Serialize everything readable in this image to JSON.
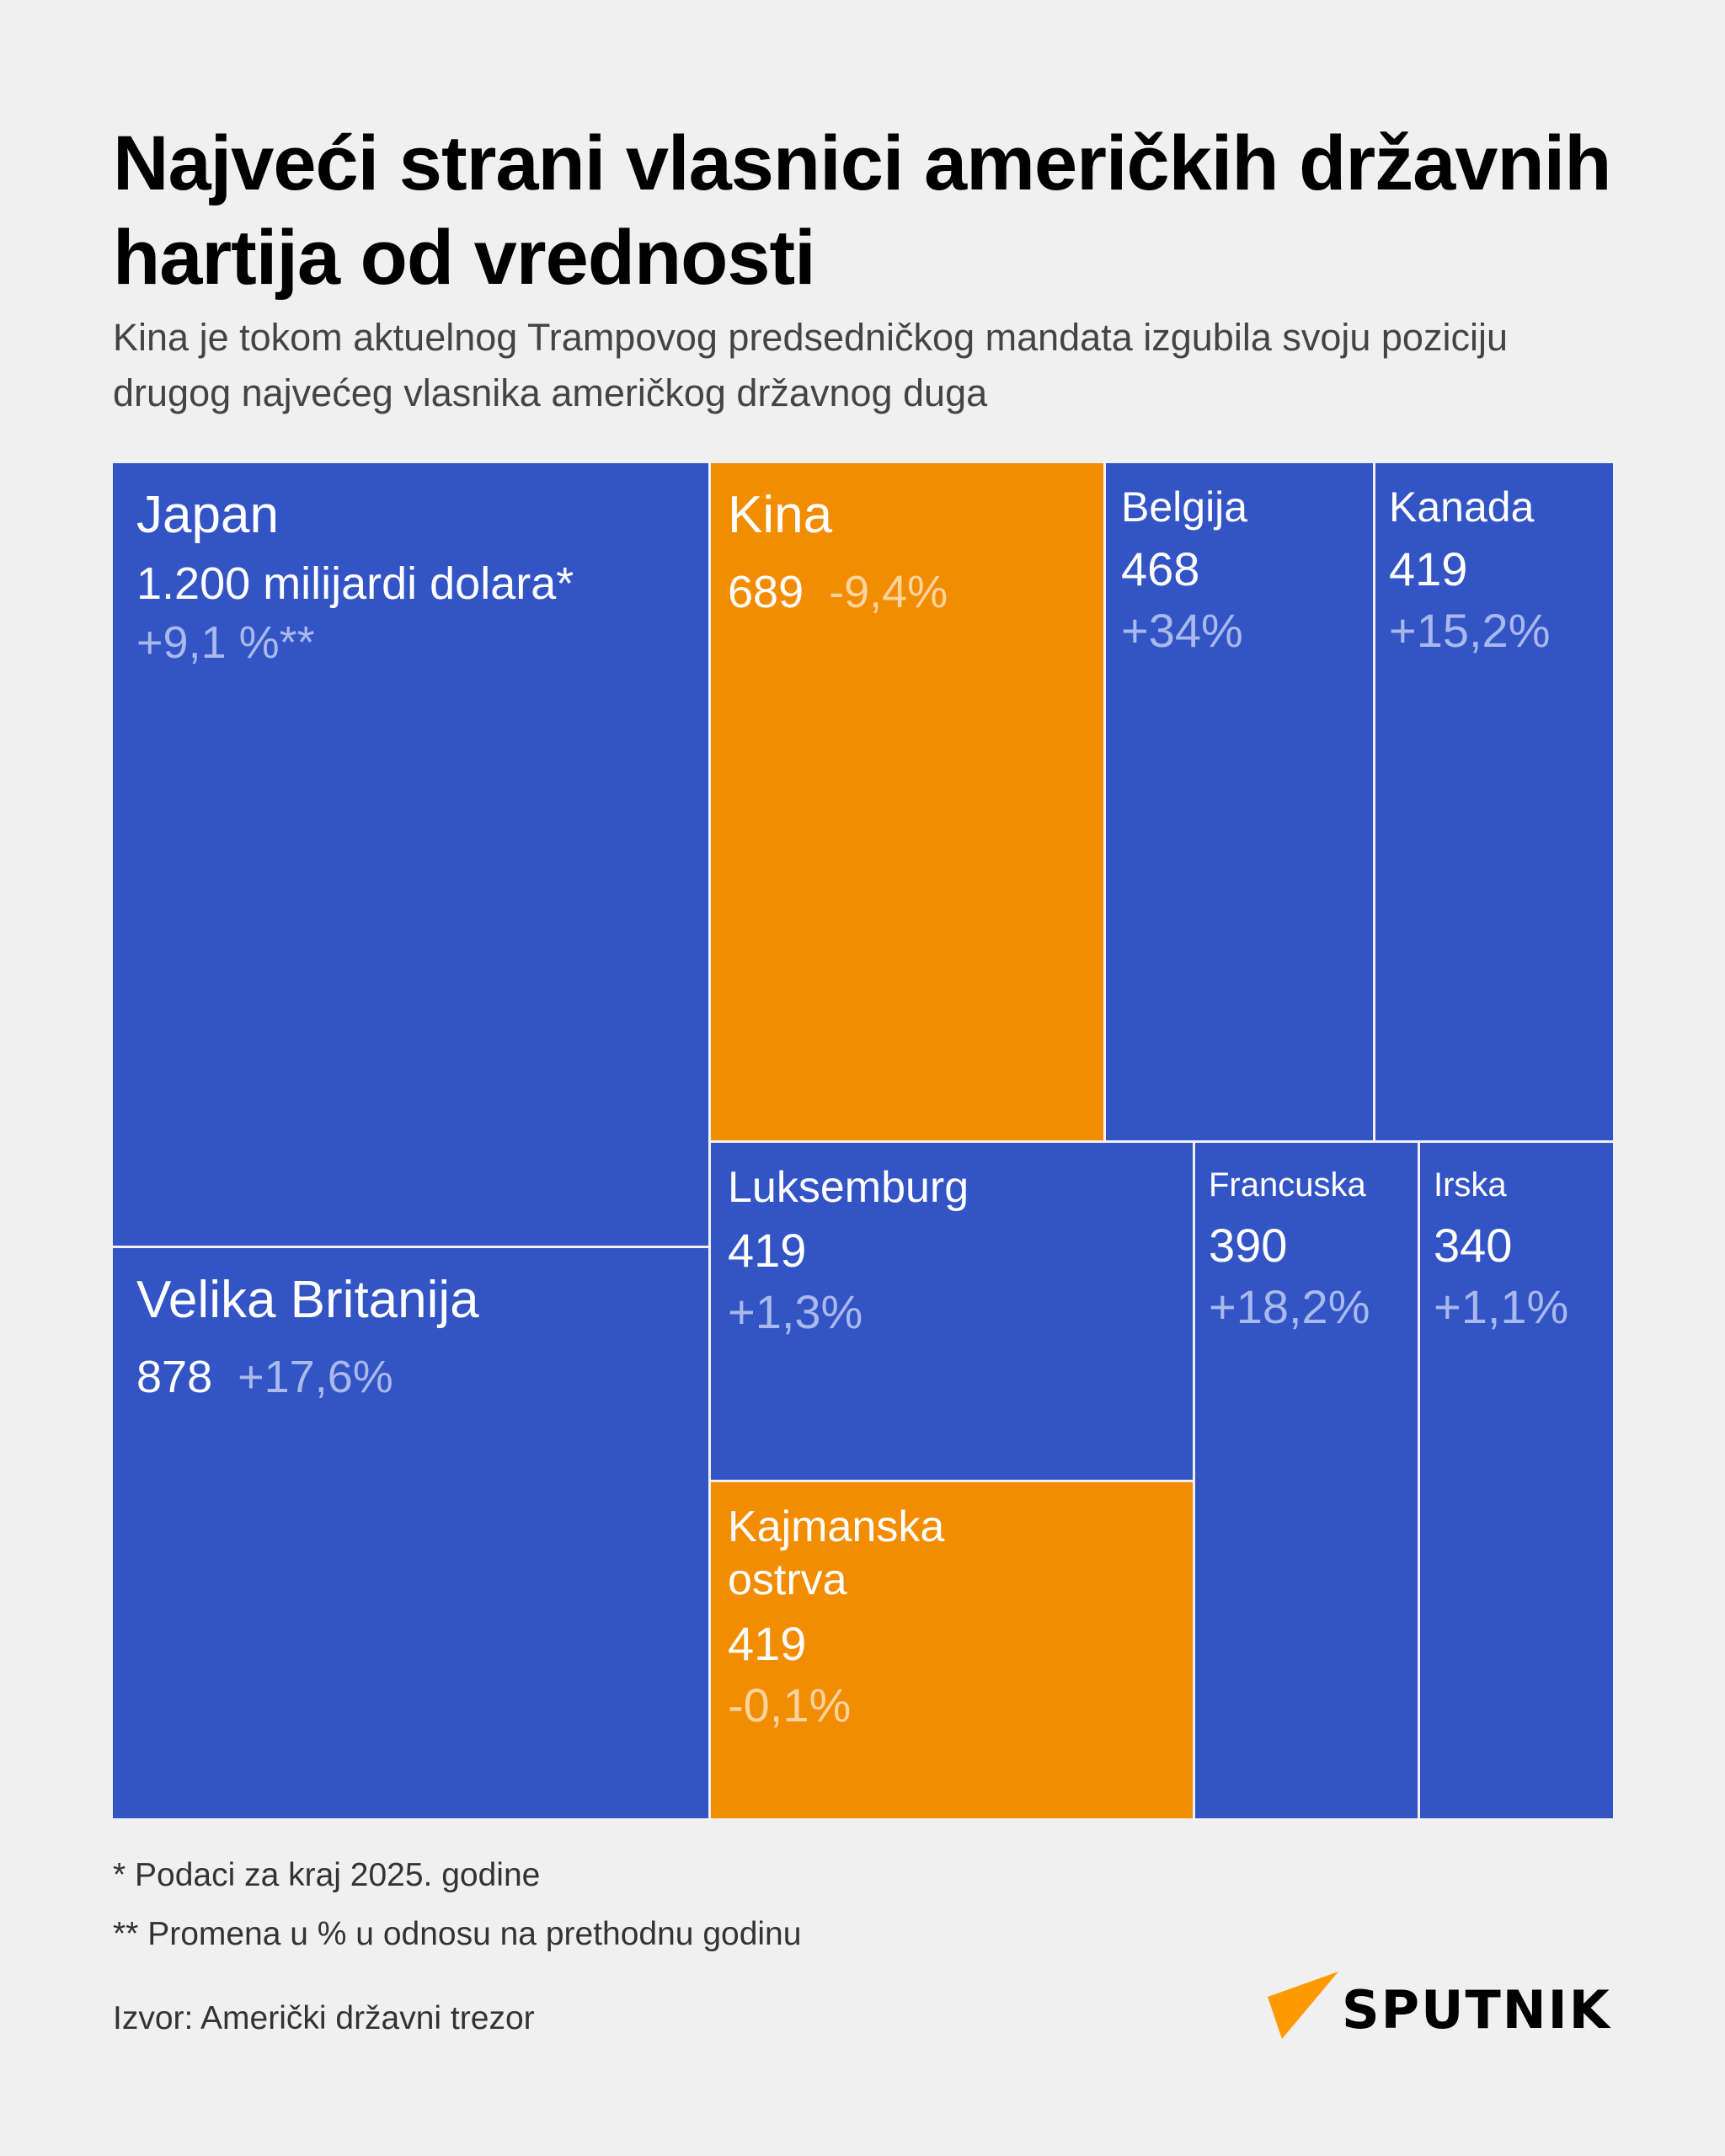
{
  "title": "Najveći strani vlasnici američkih državnih hartija od vrednosti",
  "subtitle": "Kina je tokom aktuelnog Trampovog predsedničkog mandata izgubila svoju poziciju drugog najvećeg vlasnika američkog državnog duga",
  "colors": {
    "default": "#3254c5",
    "highlight": "#f28c00",
    "background": "#f0f0f0"
  },
  "chart_data": {
    "type": "treemap",
    "unit": "milijardi dolara",
    "items": [
      {
        "name": "Japan",
        "value": 1200,
        "value_label": "1.200 milijardi dolara*",
        "change_label": "+9,1 %**",
        "color": "#3254c5"
      },
      {
        "name": "Kina",
        "value": 689,
        "value_label": "689",
        "change_label": "-9,4%",
        "color": "#f28c00"
      },
      {
        "name": "Belgija",
        "value": 468,
        "value_label": "468",
        "change_label": "+34%",
        "color": "#3254c5"
      },
      {
        "name": "Kanada",
        "value": 419,
        "value_label": "419",
        "change_label": "+15,2%",
        "color": "#3254c5"
      },
      {
        "name": "Velika Britanija",
        "value": 878,
        "value_label": "878",
        "change_label": "+17,6%",
        "color": "#3254c5"
      },
      {
        "name": "Luksemburg",
        "value": 419,
        "value_label": "419",
        "change_label": "+1,3%",
        "color": "#3254c5"
      },
      {
        "name": "Kajmanska ostrva",
        "value": 419,
        "value_label": "419",
        "change_label": "-0,1%",
        "color": "#f28c00"
      },
      {
        "name": "Francuska",
        "value": 390,
        "value_label": "390",
        "change_label": "+18,2%",
        "color": "#3254c5"
      },
      {
        "name": "Irska",
        "value": 340,
        "value_label": "340",
        "change_label": "+1,1%",
        "color": "#3254c5"
      }
    ]
  },
  "footnotes": [
    "* Podaci za kraj 2025. godine",
    "** Promena u % u odnosu na prethodnu godinu"
  ],
  "source": "Izvor: Američki državni trezor",
  "logo": {
    "text": "SPUTNIK",
    "icon": "sputnik-triangle-icon"
  }
}
